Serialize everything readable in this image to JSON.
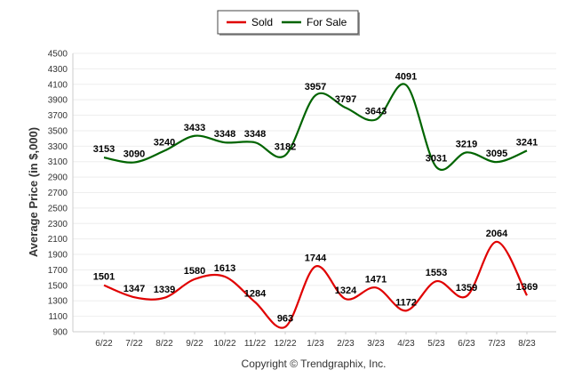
{
  "chart_data": {
    "type": "line",
    "categories": [
      "6/22",
      "7/22",
      "8/22",
      "9/22",
      "10/22",
      "11/22",
      "12/22",
      "1/23",
      "2/23",
      "3/23",
      "4/23",
      "5/23",
      "6/23",
      "7/23",
      "8/23"
    ],
    "series": [
      {
        "name": "Sold",
        "color": "#e00000",
        "values": [
          1501,
          1347,
          1339,
          1580,
          1613,
          1284,
          963,
          1744,
          1324,
          1471,
          1172,
          1553,
          1359,
          2064,
          1369
        ]
      },
      {
        "name": "For Sale",
        "color": "#006400",
        "values": [
          3153,
          3090,
          3240,
          3433,
          3348,
          3348,
          3182,
          3957,
          3797,
          3643,
          4091,
          3031,
          3219,
          3095,
          3241
        ]
      }
    ],
    "ylabel": "Average Price (in $,000)",
    "xlabel": "",
    "ylim": [
      900,
      4500
    ],
    "yticks": [
      900,
      1100,
      1300,
      1500,
      1700,
      1900,
      2100,
      2300,
      2500,
      2700,
      2900,
      3100,
      3300,
      3500,
      3700,
      3900,
      4100,
      4300,
      4500
    ],
    "grid": true,
    "legend_position": "top-center",
    "smooth": true
  },
  "footer": {
    "copyright": "Copyright © Trendgraphix, Inc."
  }
}
